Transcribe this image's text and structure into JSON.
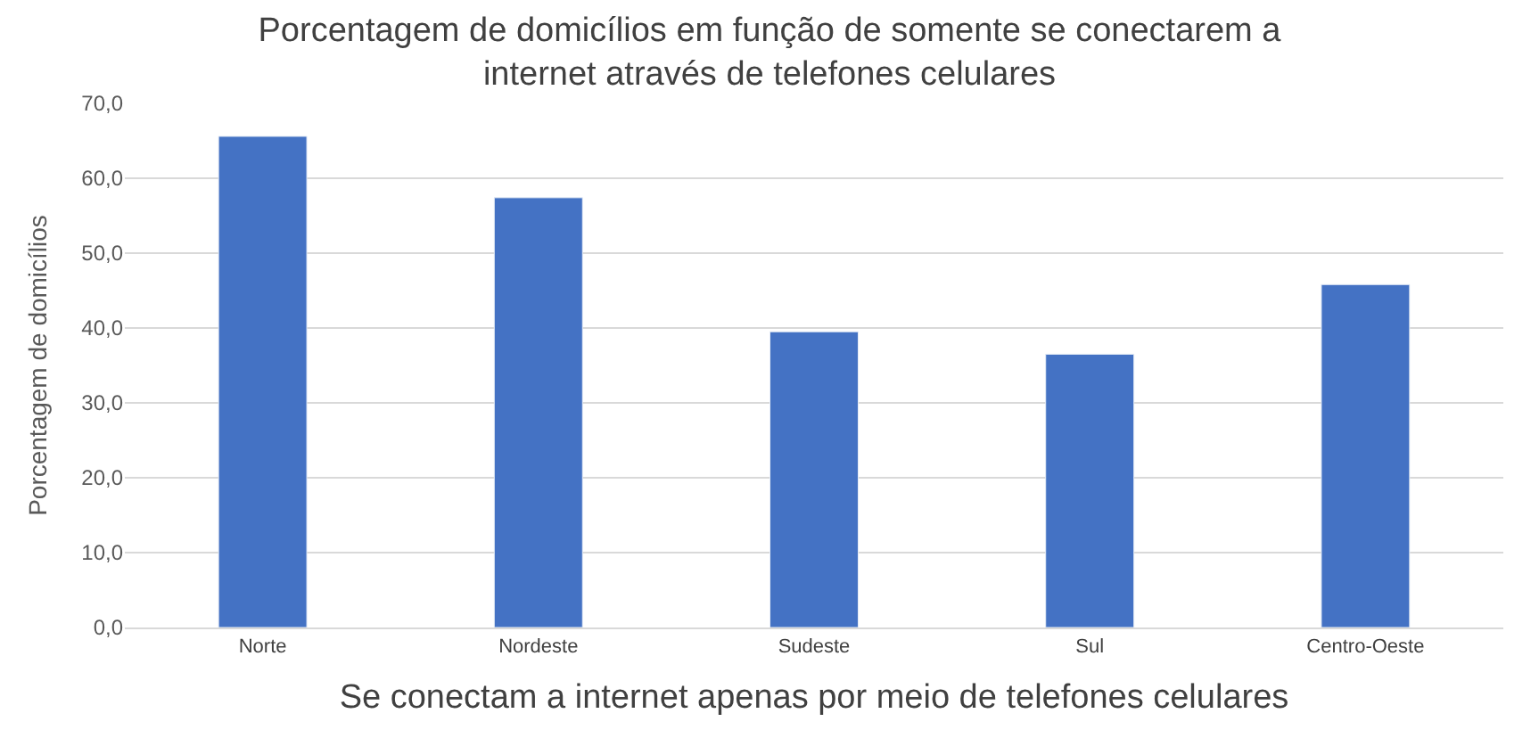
{
  "chart_data": {
    "type": "bar",
    "title": "Porcentagem de domicílios em função de somente se conectarem a internet através de telefones celulares",
    "xlabel": "Se conectam a internet apenas por meio de telefones celulares",
    "ylabel": "Porcentagem de domicílios",
    "categories": [
      "Norte",
      "Nordeste",
      "Sudeste",
      "Sul",
      "Centro-Oeste"
    ],
    "values": [
      65.6,
      57.4,
      39.5,
      36.5,
      45.8
    ],
    "color": "#4472c4",
    "ylim": [
      0,
      70
    ],
    "yticks": [
      {
        "value": 0,
        "label": "0,0"
      },
      {
        "value": 10,
        "label": "10,0"
      },
      {
        "value": 20,
        "label": "20,0"
      },
      {
        "value": 30,
        "label": "30,0"
      },
      {
        "value": 40,
        "label": "40,0"
      },
      {
        "value": 50,
        "label": "50,0"
      },
      {
        "value": 60,
        "label": "60,0"
      },
      {
        "value": 70,
        "label": "70,0"
      }
    ],
    "grid": "y"
  }
}
